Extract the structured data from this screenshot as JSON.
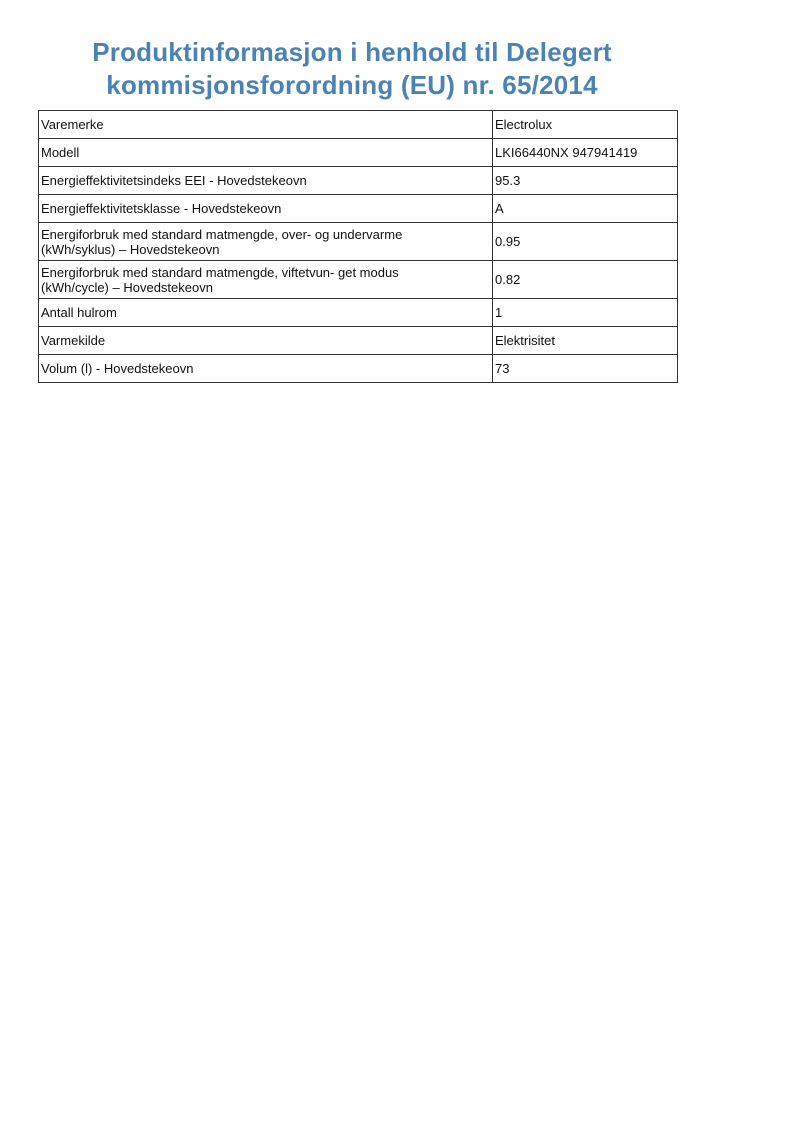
{
  "title": {
    "line1": "Produktinformasjon i henhold til Delegert",
    "line2": "kommisjonsforordning (EU) nr. 65/2014"
  },
  "title_color": "#4a82b6",
  "rows": [
    {
      "label": "Varemerke",
      "value": "Electrolux"
    },
    {
      "label": "Modell",
      "value": "LKI66440NX 947941419"
    },
    {
      "label": "Energieffektivitetsindeks EEI - Hovedstekeovn",
      "value": "95.3"
    },
    {
      "label": "Energieffektivitetsklasse - Hovedstekeovn",
      "value": "A"
    },
    {
      "label": "Energiforbruk med standard matmengde, over- og undervarme",
      "label2": "(kWh/syklus) – Hovedstekeovn",
      "value": "0.95"
    },
    {
      "label": "Energiforbruk med standard matmengde, viftetvun- get modus",
      "label2": "(kWh/cycle) – Hovedstekeovn",
      "value": "0.82"
    },
    {
      "label": "Antall hulrom",
      "value": "1"
    },
    {
      "label": "Varmekilde",
      "value": "Elektrisitet"
    },
    {
      "label": "Volum (l) - Hovedstekeovn",
      "value": "73"
    }
  ]
}
